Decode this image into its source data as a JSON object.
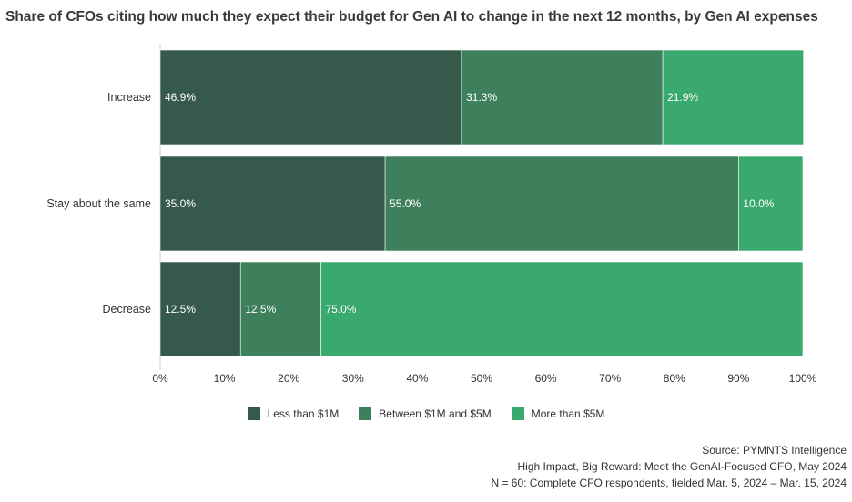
{
  "chart_data": {
    "type": "bar",
    "orientation": "horizontal",
    "stacked": true,
    "title": "Share of CFOs citing how much they expect their budget for Gen AI to change in the next 12 months, by Gen AI expenses",
    "categories": [
      "Increase",
      "Stay about the same",
      "Decrease"
    ],
    "series": [
      {
        "name": "Less than $1M",
        "color": "#35594a",
        "values": [
          46.9,
          35.0,
          12.5
        ]
      },
      {
        "name": "Between $1M and $5M",
        "color": "#3f805c",
        "values": [
          31.3,
          55.0,
          12.5
        ]
      },
      {
        "name": "More than $5M",
        "color": "#3aa96d",
        "values": [
          21.9,
          10.0,
          75.0
        ]
      }
    ],
    "data_labels": [
      [
        "46.9%",
        "31.3%",
        "21.9%"
      ],
      [
        "35.0%",
        "55.0%",
        "10.0%"
      ],
      [
        "12.5%",
        "12.5%",
        "75.0%"
      ]
    ],
    "xlim": [
      0,
      100
    ],
    "xticks": [
      "0%",
      "10%",
      "20%",
      "30%",
      "40%",
      "50%",
      "60%",
      "70%",
      "80%",
      "90%",
      "100%"
    ],
    "legend_position": "bottom",
    "xlabel": "",
    "ylabel": ""
  },
  "source": {
    "line1": "Source: PYMNTS Intelligence",
    "line2": "High Impact, Big Reward: Meet the GenAI-Focused CFO, May 2024",
    "line3": "N = 60: Complete CFO respondents, fielded Mar. 5, 2024 – Mar. 15, 2024"
  }
}
